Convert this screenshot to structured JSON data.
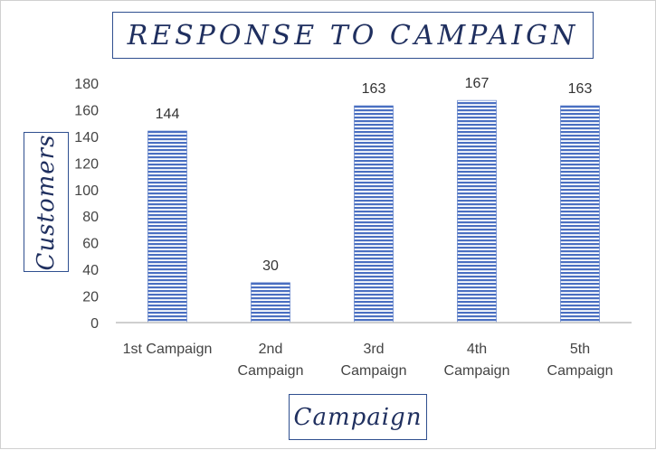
{
  "chart_data": {
    "type": "bar",
    "title": "RESPONSE TO CAMPAIGN",
    "xlabel": "Campaign",
    "ylabel": "Customers",
    "categories": [
      [
        "1st Campaign"
      ],
      [
        "2nd",
        "Campaign"
      ],
      [
        "3rd",
        "Campaign"
      ],
      [
        "4th",
        "Campaign"
      ],
      [
        "5th",
        "Campaign"
      ]
    ],
    "values": [
      144,
      30,
      163,
      167,
      163
    ],
    "ylim": [
      0,
      180
    ],
    "yticks": [
      0,
      20,
      40,
      60,
      80,
      100,
      120,
      140,
      160,
      180
    ],
    "grid": false,
    "legend": "none",
    "data_labels": true,
    "bar_color": "#4a6fc1",
    "bar_fill_style": "horizontal-stripes"
  }
}
